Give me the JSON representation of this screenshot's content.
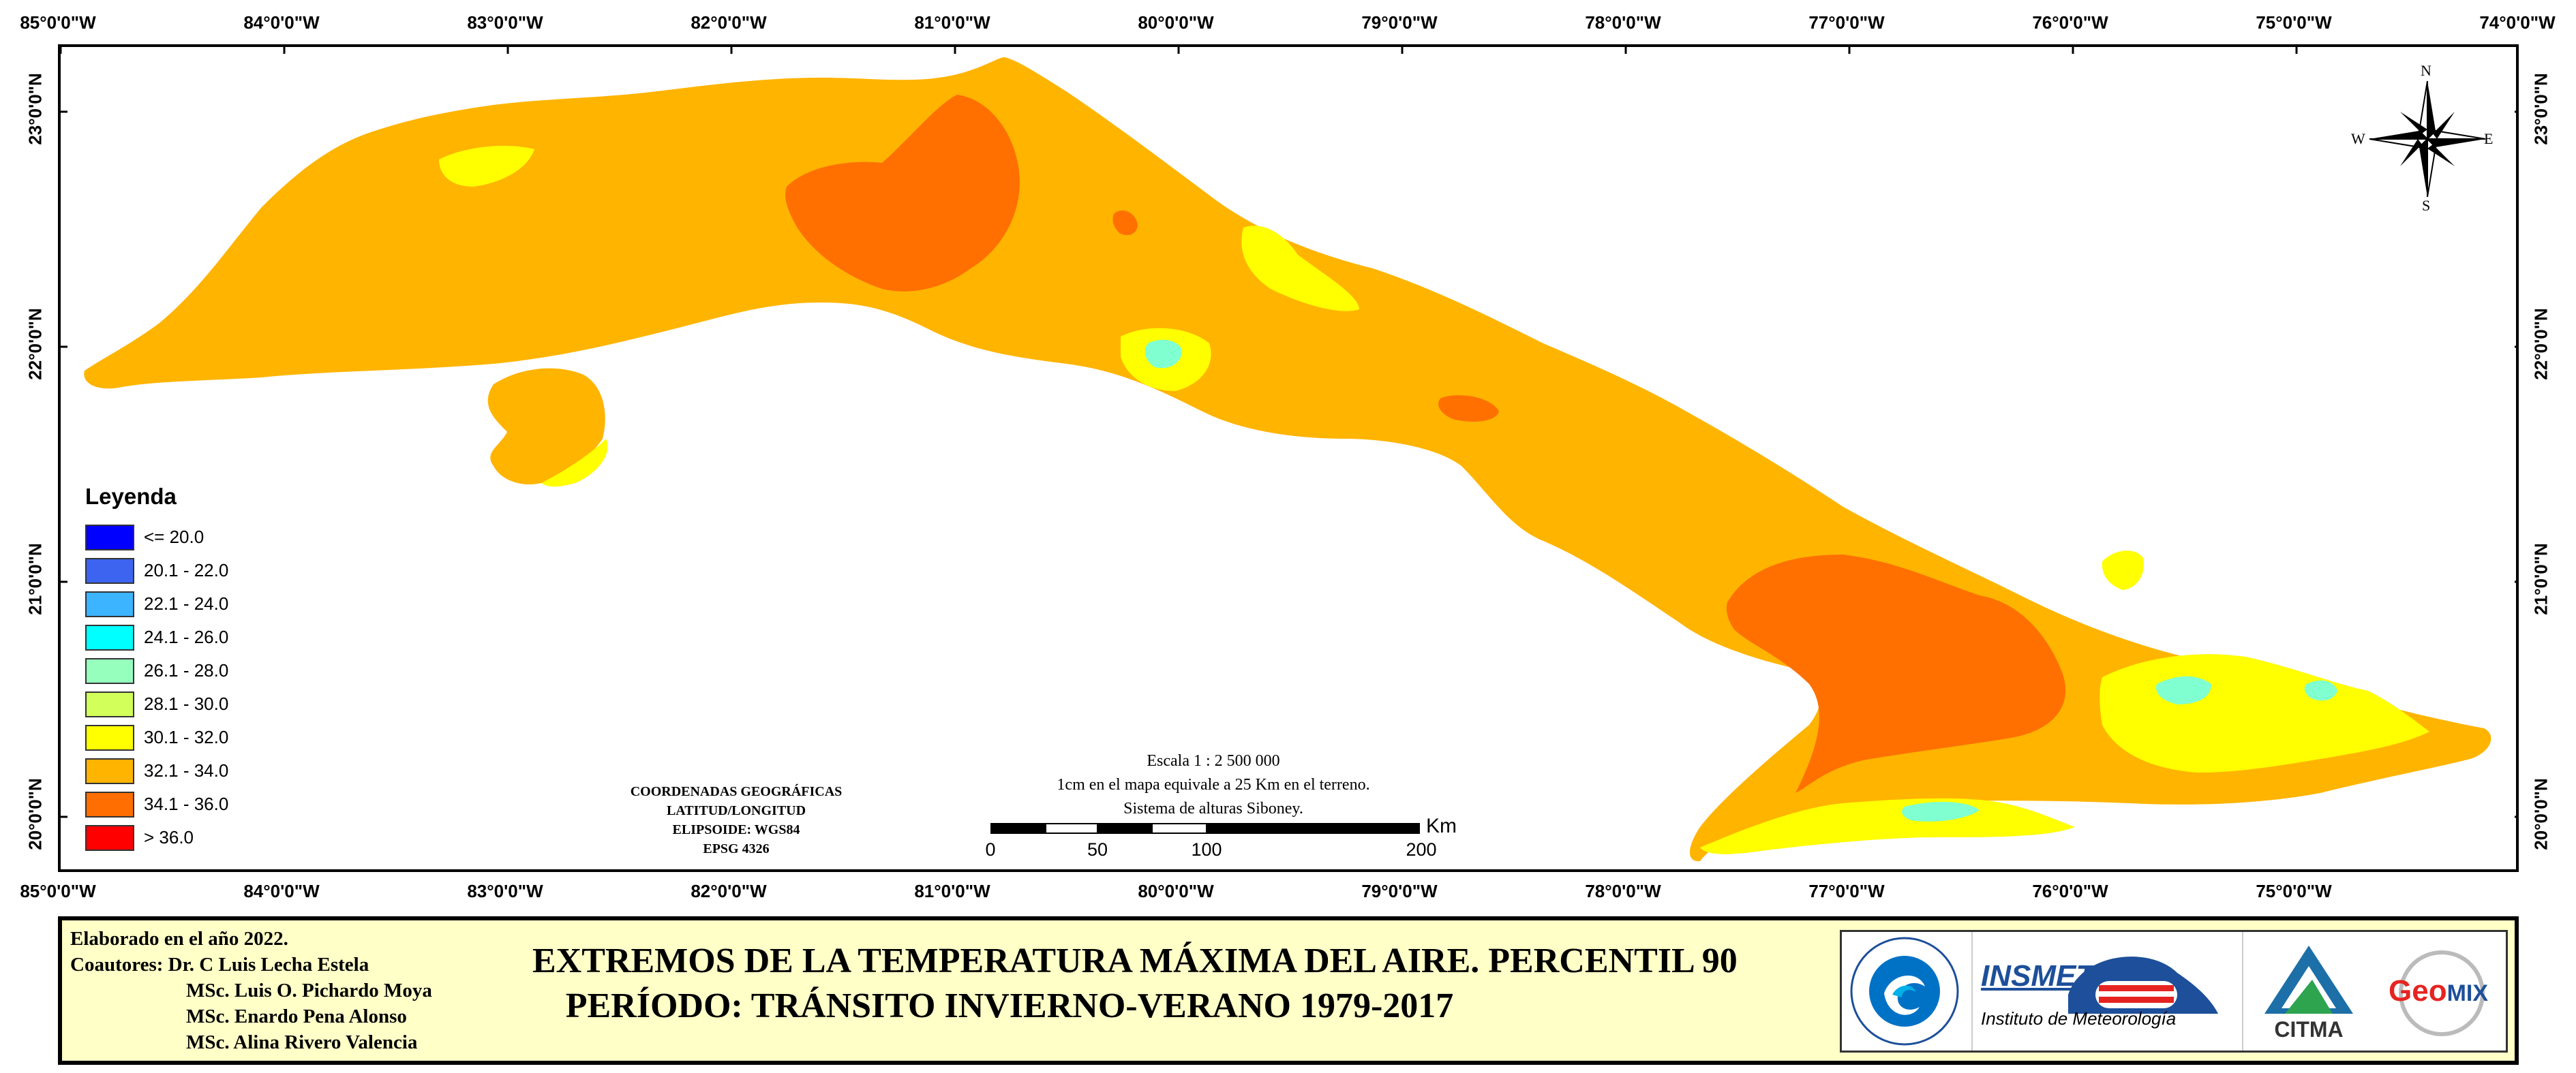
{
  "map": {
    "top_ticks": [
      "85°0'0\"W",
      "84°0'0\"W",
      "83°0'0\"W",
      "82°0'0\"W",
      "81°0'0\"W",
      "80°0'0\"W",
      "79°0'0\"W",
      "78°0'0\"W",
      "77°0'0\"W",
      "76°0'0\"W",
      "75°0'0\"W",
      "74°0'0\"W"
    ],
    "bottom_ticks": [
      "85°0'0\"W",
      "84°0'0\"W",
      "83°0'0\"W",
      "82°0'0\"W",
      "81°0'0\"W",
      "80°0'0\"W",
      "79°0'0\"W",
      "78°0'0\"W",
      "77°0'0\"W",
      "76°0'0\"W",
      "75°0'0\"W"
    ],
    "lat_ticks": [
      "23°0'0\"N",
      "22°0'0\"N",
      "21°0'0\"N",
      "20°0'0\"N"
    ],
    "compass": {
      "n": "N",
      "s": "S",
      "e": "E",
      "w": "W"
    },
    "region_colors": {
      "base": "#ffb400",
      "hot": "#ff7000",
      "warm": "#ffff00",
      "green": "#c8ff60",
      "cyan": "#80ffd0"
    }
  },
  "legend": {
    "title": "Leyenda",
    "items": [
      {
        "label": "<= 20.0",
        "color": "#0000ff"
      },
      {
        "label": "20.1 - 22.0",
        "color": "#3c64f0"
      },
      {
        "label": "22.1 - 24.0",
        "color": "#3cb4ff"
      },
      {
        "label": "24.1 - 26.0",
        "color": "#00ffff"
      },
      {
        "label": "26.1 - 28.0",
        "color": "#96ffbe"
      },
      {
        "label": "28.1 - 30.0",
        "color": "#d2ff5a"
      },
      {
        "label": "30.1 - 32.0",
        "color": "#ffff00"
      },
      {
        "label": "32.1 - 34.0",
        "color": "#ffb400"
      },
      {
        "label": "34.1 - 36.0",
        "color": "#ff6e00"
      },
      {
        "label": "> 36.0",
        "color": "#ff0000"
      }
    ]
  },
  "coords": {
    "line1": "COORDENADAS GEOGRÁFICAS",
    "line2": "LATITUD/LONGITUD",
    "line3": "ELIPSOIDE: WGS84",
    "line4": "EPSG 4326"
  },
  "scale": {
    "line1": "Escala 1 : 2 500 000",
    "line2": "1cm en el mapa equivale a 25 Km en el terreno.",
    "line3": "Sistema de alturas Siboney.",
    "unit": "Km",
    "labels": [
      "0",
      "50",
      "100",
      "200"
    ]
  },
  "footer": {
    "credits": [
      "Elaborado en el año 2022.",
      "Coautores: Dr. C Luis Lecha Estela",
      "MSc. Luis O. Pichardo Moya",
      "MSc. Enardo Pena Alonso",
      "MSc. Alina Rivero Valencia"
    ],
    "title1": "EXTREMOS DE LA TEMPERATURA MÁXIMA DEL AIRE. PERCENTIL 90",
    "title2": "PERÍODO: TRÁNSITO INVIERNO-VERANO 1979-2017",
    "logos": {
      "insmet": "INSMET",
      "insmet_sub": "Instituto de Meteorología",
      "citma": "CITMA",
      "geomix_a": "Geo",
      "geomix_b": "MIX"
    }
  }
}
